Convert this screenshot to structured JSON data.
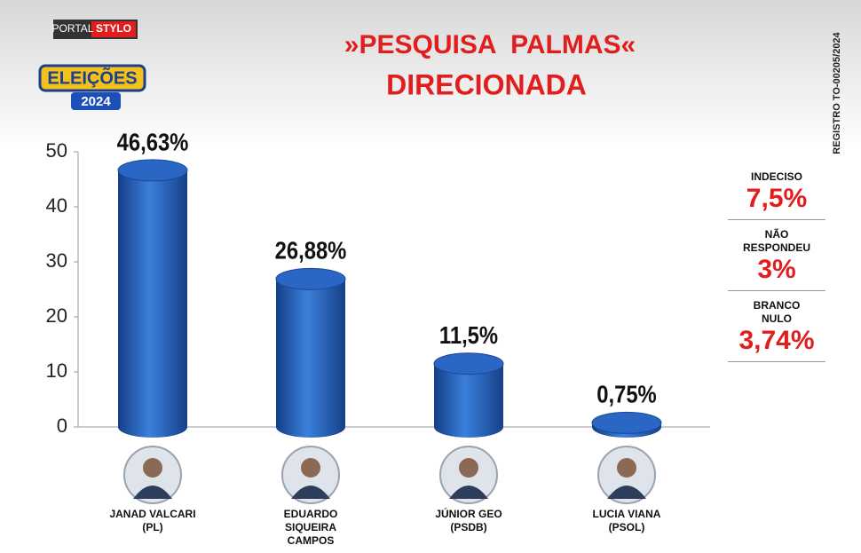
{
  "chart_data": {
    "type": "bar",
    "title": "»PESQUISA  PALMAS«",
    "subtitle": "DIRECIONADA",
    "brand": {
      "portal": "PORTAL",
      "name": "STYLO",
      "badge": "ELEIÇÕES",
      "year": "2024"
    },
    "registration": "REGISTRO TO-00205/2024",
    "categories": [
      "JANAD VALCARI",
      "EDUARDO SIQUEIRA CAMPOS",
      "JÚNIOR GEO",
      "LUCIA VIANA"
    ],
    "parties": [
      "(PL)",
      null,
      "(PSDB)",
      "(PSOL)"
    ],
    "values": [
      46.63,
      26.88,
      11.5,
      0.75
    ],
    "value_labels": [
      "46,63%",
      "26,88%",
      "11,5%",
      "0,75%"
    ],
    "color": "#2a66c4",
    "ylim": [
      0,
      50
    ],
    "yticks": [
      0,
      10,
      20,
      30,
      40,
      50
    ],
    "notes": [
      {
        "label": "INDECISO",
        "text": "7,5%"
      },
      {
        "label": "NÃO RESPONDEU",
        "text": "3%"
      },
      {
        "label": "BRANCO NULO",
        "text": "3,74%"
      }
    ]
  }
}
